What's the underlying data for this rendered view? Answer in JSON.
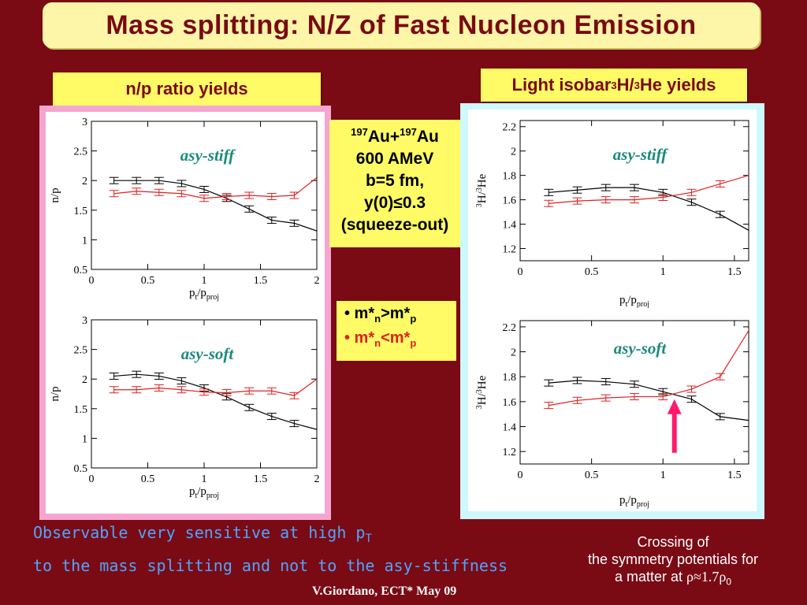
{
  "title": "Mass splitting: N/Z of Fast Nucleon Emission",
  "left_label": "n/p ratio yields",
  "right_label_prefix": "Light isobar ",
  "right_label_sup1": "3",
  "right_label_mid": "H/",
  "right_label_sup2": "3",
  "right_label_suffix": "He yields",
  "reaction": {
    "sup1": "197",
    "el1": "Au+",
    "sup2": "197",
    "el2": "Au",
    "line2": "600 AMeV",
    "line3": "b=5 fm,",
    "line4": "y(0)≤0.3",
    "line5": "(squeeze-out)"
  },
  "mass_box": {
    "line1_a": "• m*",
    "line1_sub1": "n",
    "line1_b": ">m*",
    "line1_sub2": "p",
    "line2_a": "• m*",
    "line2_sub1": "n",
    "line2_b": "<m*",
    "line2_sub2": "p"
  },
  "bottom": {
    "line1": "Observable very sensitive at high p",
    "line1_sub": "T",
    "line2": "to the mass splitting and not to the asy-stiffness"
  },
  "credit": "V.Giordano, ECT* May 09",
  "crossing": {
    "line1": "Crossing of",
    "line2": "the symmetry potentials for",
    "line3_a": "a matter at ",
    "line3_b": "ρ≈1.7ρ",
    "line3_sub": "0"
  },
  "colors": {
    "black_series": "#000000",
    "red_series": "#e02020",
    "arrow": "#ff1a6e",
    "model_label": "#1a8a7a"
  },
  "chart_data": [
    {
      "type": "line",
      "panel": "np-stiff",
      "annotation": "asy-stiff",
      "xlabel": "pt/pproj",
      "ylabel": "n/p",
      "xlim": [
        0,
        2
      ],
      "ylim": [
        0.5,
        3
      ],
      "xticks": [
        0,
        0.5,
        1,
        1.5,
        2
      ],
      "yticks": [
        0.5,
        1,
        1.5,
        2,
        2.5,
        3
      ],
      "series": [
        {
          "color": "black",
          "x": [
            0.2,
            0.4,
            0.6,
            0.8,
            1.0,
            1.2,
            1.4,
            1.6,
            1.8,
            2.0
          ],
          "y": [
            2.0,
            2.0,
            2.0,
            1.95,
            1.85,
            1.7,
            1.52,
            1.33,
            1.28,
            1.15
          ]
        },
        {
          "color": "red",
          "x": [
            0.2,
            0.4,
            0.6,
            0.8,
            1.0,
            1.2,
            1.4,
            1.6,
            1.8,
            2.0
          ],
          "y": [
            1.78,
            1.82,
            1.8,
            1.78,
            1.7,
            1.73,
            1.75,
            1.73,
            1.75,
            2.05
          ]
        }
      ]
    },
    {
      "type": "line",
      "panel": "np-soft",
      "annotation": "asy-soft",
      "xlabel": "pt/pproj",
      "ylabel": "n/p",
      "xlim": [
        0,
        2
      ],
      "ylim": [
        0.5,
        3
      ],
      "xticks": [
        0,
        0.5,
        1,
        1.5,
        2
      ],
      "yticks": [
        0.5,
        1,
        1.5,
        2,
        2.5,
        3
      ],
      "series": [
        {
          "color": "black",
          "x": [
            0.2,
            0.4,
            0.6,
            0.8,
            1.0,
            1.2,
            1.4,
            1.6,
            1.8,
            2.0
          ],
          "y": [
            2.05,
            2.08,
            2.05,
            1.97,
            1.85,
            1.7,
            1.52,
            1.37,
            1.25,
            1.15
          ]
        },
        {
          "color": "red",
          "x": [
            0.2,
            0.4,
            0.6,
            0.8,
            1.0,
            1.2,
            1.4,
            1.6,
            1.8,
            2.0
          ],
          "y": [
            1.82,
            1.82,
            1.85,
            1.82,
            1.78,
            1.77,
            1.8,
            1.8,
            1.72,
            2.0
          ]
        }
      ]
    },
    {
      "type": "line",
      "panel": "h-he-stiff",
      "annotation": "asy-stiff",
      "xlabel": "pt/pproj",
      "ylabel": "3H/3He",
      "xlim": [
        0,
        1.6
      ],
      "ylim": [
        1.1,
        2.25
      ],
      "xticks": [
        0,
        0.5,
        1,
        1.5
      ],
      "yticks": [
        1.2,
        1.4,
        1.6,
        1.8,
        2,
        2.2
      ],
      "series": [
        {
          "color": "black",
          "x": [
            0.2,
            0.4,
            0.6,
            0.8,
            1.0,
            1.2,
            1.4,
            1.6
          ],
          "y": [
            1.66,
            1.68,
            1.7,
            1.7,
            1.66,
            1.58,
            1.48,
            1.35
          ]
        },
        {
          "color": "red",
          "x": [
            0.2,
            0.4,
            0.6,
            0.8,
            1.0,
            1.2,
            1.4,
            1.6
          ],
          "y": [
            1.57,
            1.59,
            1.6,
            1.6,
            1.62,
            1.66,
            1.73,
            1.8
          ]
        }
      ]
    },
    {
      "type": "line",
      "panel": "h-he-soft",
      "annotation": "asy-soft",
      "xlabel": "pt/pproj",
      "ylabel": "3H/3He",
      "xlim": [
        0,
        1.6
      ],
      "ylim": [
        1.1,
        2.25
      ],
      "xticks": [
        0,
        0.5,
        1,
        1.5
      ],
      "yticks": [
        1.2,
        1.4,
        1.6,
        1.8,
        2,
        2.2
      ],
      "series": [
        {
          "color": "black",
          "x": [
            0.2,
            0.4,
            0.6,
            0.8,
            1.0,
            1.2,
            1.4,
            1.6
          ],
          "y": [
            1.75,
            1.77,
            1.76,
            1.74,
            1.68,
            1.62,
            1.48,
            1.45
          ]
        },
        {
          "color": "red",
          "x": [
            0.2,
            0.4,
            0.6,
            0.8,
            1.0,
            1.2,
            1.4,
            1.6
          ],
          "y": [
            1.57,
            1.61,
            1.63,
            1.64,
            1.64,
            1.7,
            1.8,
            2.17
          ]
        }
      ]
    }
  ]
}
